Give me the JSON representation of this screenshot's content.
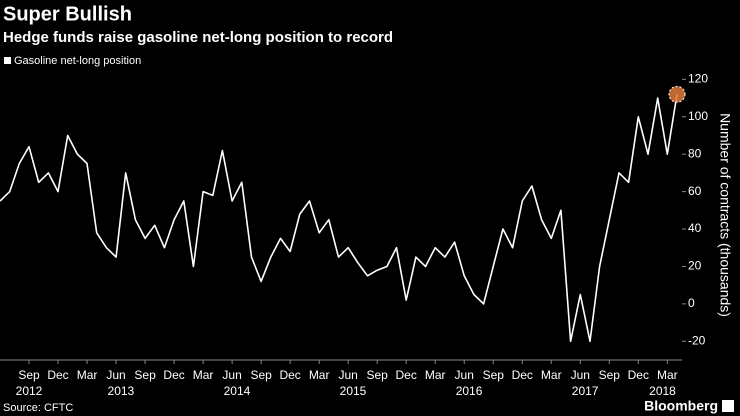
{
  "chart_data": {
    "type": "line",
    "title": "Super Bullish",
    "subtitle": "Hedge funds raise gasoline net-long position to record",
    "y_label": "Number of contracts (thousands)",
    "source": "Source: CFTC",
    "brand": "Bloomberg",
    "x": [
      "2012-06",
      "2012-07",
      "2012-08",
      "2012-09",
      "2012-10",
      "2012-11",
      "2012-12",
      "2013-01",
      "2013-02",
      "2013-03",
      "2013-04",
      "2013-05",
      "2013-06",
      "2013-07",
      "2013-08",
      "2013-09",
      "2013-10",
      "2013-11",
      "2013-12",
      "2014-01",
      "2014-02",
      "2014-03",
      "2014-04",
      "2014-05",
      "2014-06",
      "2014-07",
      "2014-08",
      "2014-09",
      "2014-10",
      "2014-11",
      "2014-12",
      "2015-01",
      "2015-02",
      "2015-03",
      "2015-04",
      "2015-05",
      "2015-06",
      "2015-07",
      "2015-08",
      "2015-09",
      "2015-10",
      "2015-11",
      "2015-12",
      "2016-01",
      "2016-02",
      "2016-03",
      "2016-04",
      "2016-05",
      "2016-06",
      "2016-07",
      "2016-08",
      "2016-09",
      "2016-10",
      "2016-11",
      "2016-12",
      "2017-01",
      "2017-02",
      "2017-03",
      "2017-04",
      "2017-05",
      "2017-06",
      "2017-07",
      "2017-08",
      "2017-09",
      "2017-10",
      "2017-11",
      "2017-12",
      "2018-01",
      "2018-02",
      "2018-03",
      "2018-04"
    ],
    "series": [
      {
        "name": "Gasoline net-long position",
        "color": "#ffffff",
        "values": [
          55,
          60,
          75,
          84,
          65,
          70,
          60,
          90,
          80,
          75,
          38,
          30,
          25,
          70,
          45,
          35,
          42,
          30,
          45,
          55,
          20,
          60,
          58,
          82,
          55,
          65,
          25,
          12,
          25,
          35,
          28,
          48,
          55,
          38,
          45,
          25,
          30,
          22,
          15,
          18,
          20,
          30,
          2,
          25,
          20,
          30,
          25,
          33,
          15,
          5,
          0,
          20,
          40,
          30,
          55,
          63,
          45,
          35,
          50,
          -20,
          5,
          -20,
          20,
          45,
          70,
          65,
          100,
          80,
          110,
          80,
          112
        ]
      }
    ],
    "highlight_color": "#e07b39",
    "xlim": [
      "2012-06",
      "2018-04"
    ],
    "xticks": [
      {
        "value": "2012-09",
        "label": "Sep"
      },
      {
        "value": "2012-12",
        "label": "Dec"
      },
      {
        "value": "2013-03",
        "label": "Mar"
      },
      {
        "value": "2013-06",
        "label": "Jun"
      },
      {
        "value": "2013-09",
        "label": "Sep"
      },
      {
        "value": "2013-12",
        "label": "Dec"
      },
      {
        "value": "2014-03",
        "label": "Mar"
      },
      {
        "value": "2014-06",
        "label": "Jun"
      },
      {
        "value": "2014-09",
        "label": "Sep"
      },
      {
        "value": "2014-12",
        "label": "Dec"
      },
      {
        "value": "2015-03",
        "label": "Mar"
      },
      {
        "value": "2015-06",
        "label": "Jun"
      },
      {
        "value": "2015-09",
        "label": "Sep"
      },
      {
        "value": "2015-12",
        "label": "Dec"
      },
      {
        "value": "2016-03",
        "label": "Mar"
      },
      {
        "value": "2016-06",
        "label": "Jun"
      },
      {
        "value": "2016-09",
        "label": "Sep"
      },
      {
        "value": "2016-12",
        "label": "Dec"
      },
      {
        "value": "2017-03",
        "label": "Mar"
      },
      {
        "value": "2017-06",
        "label": "Jun"
      },
      {
        "value": "2017-09",
        "label": "Sep"
      },
      {
        "value": "2017-12",
        "label": "Dec"
      },
      {
        "value": "2018-03",
        "label": "Mar"
      }
    ],
    "x_years": [
      "2012",
      "2013",
      "2014",
      "2015",
      "2016",
      "2017",
      "2018"
    ],
    "ylim": [
      -30,
      125
    ],
    "yticks": [
      -20,
      0,
      20,
      40,
      60,
      80,
      100,
      120
    ],
    "grid": false,
    "legend": "top-left"
  }
}
